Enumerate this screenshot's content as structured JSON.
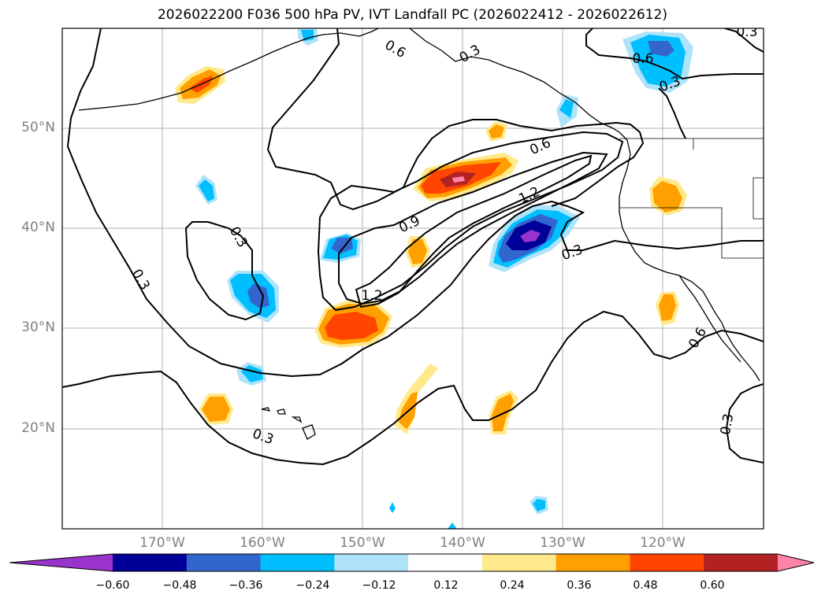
{
  "title": "2026022200 F036 500 hPa PV, IVT Landfall PC (2026022412 - 2026022612)",
  "map": {
    "extent_lon": [
      -180,
      -110
    ],
    "extent_lat": [
      10,
      60
    ],
    "lat_labels": [
      "50°N",
      "40°N",
      "30°N",
      "20°N"
    ],
    "lon_labels": [
      "170°W",
      "160°W",
      "150°W",
      "140°W",
      "130°W",
      "120°W"
    ],
    "grid": true,
    "contour_labels": [
      "0.6",
      "0.3",
      "0.6",
      "0.3",
      "0.6",
      "1.2",
      "0.9",
      "0.3",
      "0.3",
      "1.2",
      "0.3",
      "0.3",
      "0.6",
      "0.3",
      "0.3"
    ]
  },
  "colorbar": {
    "ticks": [
      "−0.60",
      "−0.48",
      "−0.36",
      "−0.24",
      "−0.12",
      "0.12",
      "0.24",
      "0.36",
      "0.48",
      "0.60"
    ],
    "colors": [
      "#9933cc",
      "#000099",
      "#3366cc",
      "#00bfff",
      "#aee3fa",
      "#ffffff",
      "#ffe98a",
      "#ffa000",
      "#ff4500",
      "#b22222",
      "#ff85a8"
    ],
    "extend": "both"
  }
}
